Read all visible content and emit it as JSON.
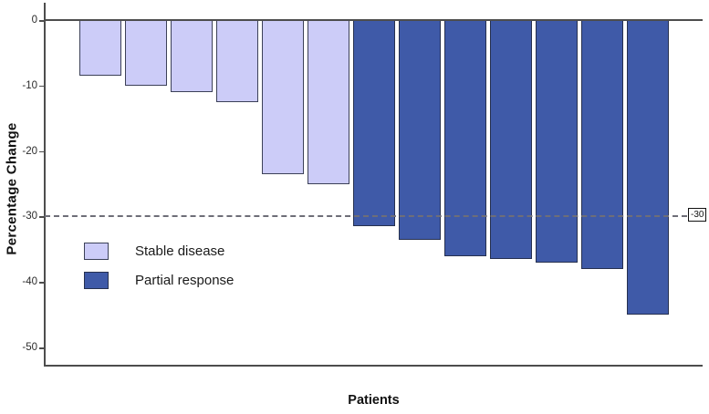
{
  "chart_data": {
    "type": "bar",
    "title": "",
    "xlabel": "Patients",
    "ylabel": "Percentage Change",
    "ylim": [
      -53,
      2
    ],
    "yticks": [
      0,
      -10,
      -20,
      -30,
      -40,
      -50
    ],
    "ytick_labels": [
      "0",
      "-10",
      "-20",
      "-30",
      "-40",
      "-50"
    ],
    "grid": false,
    "legend_position": "inside-left",
    "series": [
      {
        "name": "Stable disease",
        "fill": "#ccccf8",
        "border": "#3c4158",
        "values": [
          -8.5,
          -10,
          -11,
          -12.5,
          -23.5,
          -25
        ]
      },
      {
        "name": "Partial response",
        "fill": "#3f5aa8",
        "border": "#26304f",
        "values": [
          -31.5,
          -33.5,
          -36,
          -36.5,
          -37,
          -38,
          -45
        ]
      }
    ],
    "reference_line": {
      "value": -30,
      "label": "-30",
      "style": "dashed"
    }
  }
}
